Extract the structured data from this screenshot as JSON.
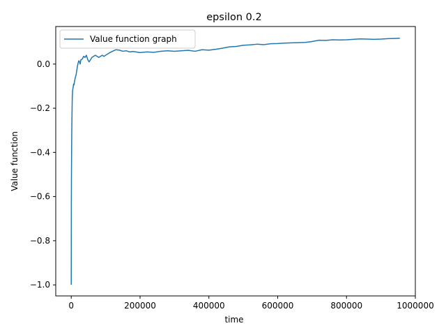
{
  "chart_data": {
    "type": "line",
    "title": "epsilon 0.2",
    "xlabel": "time",
    "ylabel": "Value function",
    "xlim": [
      -45000,
      1000000
    ],
    "ylim": [
      -1.05,
      0.17
    ],
    "xticks": [
      0,
      200000,
      400000,
      600000,
      800000,
      1000000
    ],
    "xtick_labels": [
      "0",
      "200000",
      "400000",
      "600000",
      "800000",
      "1000000"
    ],
    "yticks": [
      -1.0,
      -0.8,
      -0.6,
      -0.4,
      -0.2,
      0.0
    ],
    "ytick_labels": [
      "−1.0",
      "−0.8",
      "−0.6",
      "−0.4",
      "−0.2",
      "0.0"
    ],
    "grid": false,
    "legend_position": "upper-left",
    "series": [
      {
        "name": "Value function graph",
        "color": "#1f77b4",
        "x": [
          0,
          300,
          600,
          1000,
          1500,
          2000,
          2500,
          3000,
          4000,
          5000,
          6000,
          7000,
          8000,
          10000,
          12000,
          14000,
          16000,
          18000,
          20000,
          22000,
          24000,
          26000,
          28000,
          30000,
          33000,
          36000,
          40000,
          44000,
          48000,
          52000,
          56000,
          60000,
          65000,
          70000,
          75000,
          80000,
          85000,
          90000,
          95000,
          100000,
          110000,
          120000,
          130000,
          140000,
          150000,
          160000,
          170000,
          180000,
          200000,
          220000,
          240000,
          260000,
          280000,
          300000,
          320000,
          340000,
          360000,
          380000,
          400000,
          420000,
          440000,
          460000,
          480000,
          500000,
          520000,
          540000,
          560000,
          580000,
          600000,
          620000,
          640000,
          660000,
          680000,
          700000,
          720000,
          740000,
          760000,
          780000,
          800000,
          820000,
          840000,
          860000,
          880000,
          900000,
          920000,
          940000,
          955000
        ],
        "y": [
          -1.0,
          -0.64,
          -0.51,
          -0.42,
          -0.31,
          -0.25,
          -0.2,
          -0.15,
          -0.12,
          -0.11,
          -0.1,
          -0.09,
          -0.095,
          -0.075,
          -0.06,
          -0.05,
          -0.03,
          -0.01,
          0.005,
          0.015,
          0.01,
          0.0,
          0.02,
          0.02,
          0.025,
          0.035,
          0.03,
          0.04,
          0.02,
          0.01,
          0.02,
          0.03,
          0.035,
          0.04,
          0.035,
          0.03,
          0.035,
          0.04,
          0.035,
          0.04,
          0.05,
          0.058,
          0.065,
          0.063,
          0.058,
          0.06,
          0.055,
          0.057,
          0.052,
          0.055,
          0.053,
          0.058,
          0.06,
          0.058,
          0.06,
          0.062,
          0.058,
          0.065,
          0.063,
          0.067,
          0.072,
          0.078,
          0.08,
          0.085,
          0.087,
          0.09,
          0.088,
          0.092,
          0.093,
          0.095,
          0.096,
          0.097,
          0.098,
          0.102,
          0.108,
          0.107,
          0.11,
          0.109,
          0.11,
          0.112,
          0.114,
          0.113,
          0.112,
          0.113,
          0.115,
          0.116,
          0.117
        ]
      }
    ]
  }
}
